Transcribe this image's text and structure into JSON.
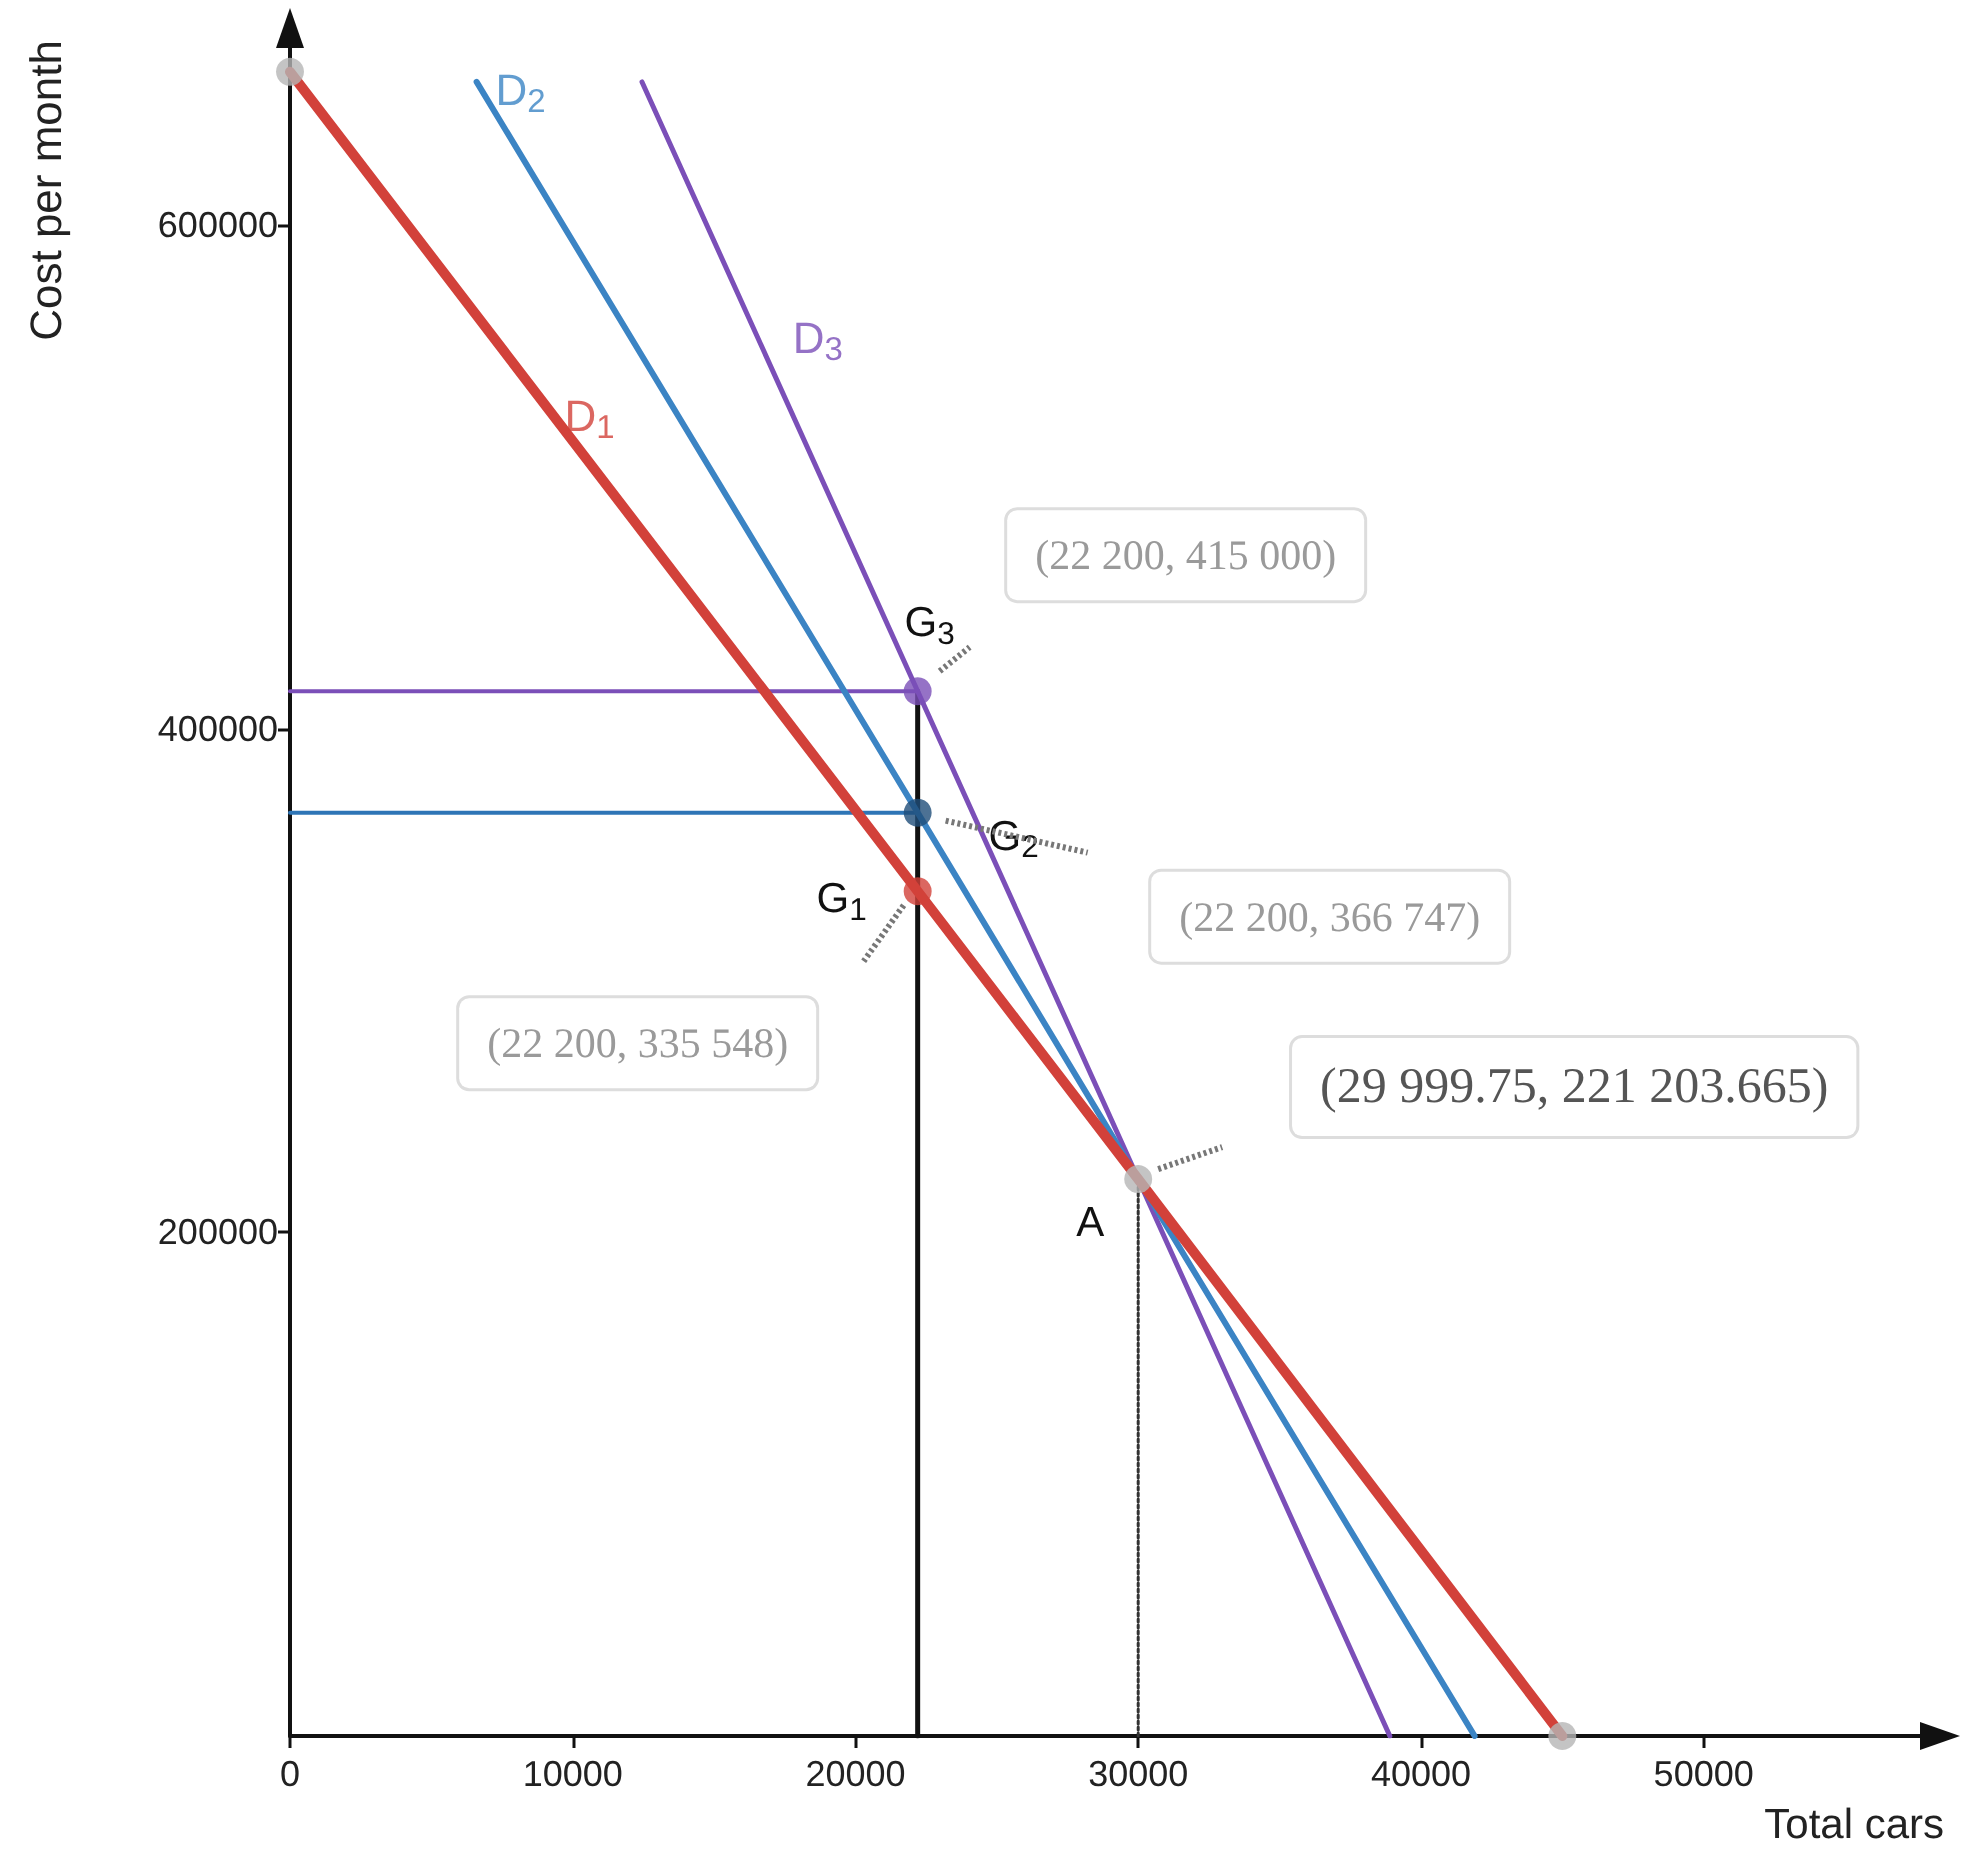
{
  "chart_data": {
    "type": "line",
    "xlabel": "Total cars",
    "ylabel": "Cost per month",
    "xlim": [
      0,
      58500
    ],
    "ylim": [
      0,
      680000
    ],
    "xticks": [
      0,
      10000,
      20000,
      30000,
      40000,
      50000
    ],
    "yticks": [
      200000,
      400000,
      600000
    ],
    "grid": false,
    "marker": "none",
    "line_style": "solid",
    "series": [
      {
        "name": "D$_{1}$",
        "color": "#d2413a",
        "x": [
          0,
          22200,
          29999.75,
          45000
        ],
        "values": [
          661000,
          335548,
          221203.665,
          0
        ]
      },
      {
        "name": "D$_{2}$",
        "color": "#3b84c4",
        "x": [
          6600,
          22200,
          29999.75,
          41900
        ],
        "values": [
          657000,
          366747,
          221203.665,
          0
        ]
      },
      {
        "name": "D$_{3}$",
        "color": "#7b4fb8",
        "x": [
          12450,
          22200,
          29999.75,
          38900
        ],
        "values": [
          657000,
          415000,
          221203.665,
          0
        ]
      },
      {
        "color": "#7b4fb8",
        "x": [
          0,
          22200
        ],
        "values": [
          415000,
          415000
        ]
      },
      {
        "color": "#2e75b6",
        "x": [
          0,
          22200
        ],
        "values": [
          366747,
          366747
        ]
      },
      {
        "color": "#111111",
        "x": [
          22200,
          22200
        ],
        "values": [
          0,
          415000
        ]
      },
      {
        "color": "#333333",
        "line_style": "dotted",
        "x": [
          29999.75,
          29999.75
        ],
        "values": [
          0,
          221203.665
        ]
      },
      {
        "type": "scatter",
        "marker": "circle",
        "x": [
          0,
          45000,
          22200,
          22200,
          22200,
          29999.75
        ],
        "values": [
          661000,
          0,
          335548,
          366747,
          415000,
          221203.665
        ],
        "colors": [
          "#b5b5b5",
          "#b5b5b5",
          "#d2413a",
          "#1f4e79",
          "#7b4fb8",
          "#b5b5b5"
        ]
      }
    ],
    "annotations": [
      "G$_{1}$",
      "G$_{2}$",
      "G$_{3}$",
      "A",
      "(22 200, 335 548)",
      "(22 200, 366 747)",
      "(22 200, 415 000)",
      "(29 999.75, 221 203.665)"
    ]
  }
}
